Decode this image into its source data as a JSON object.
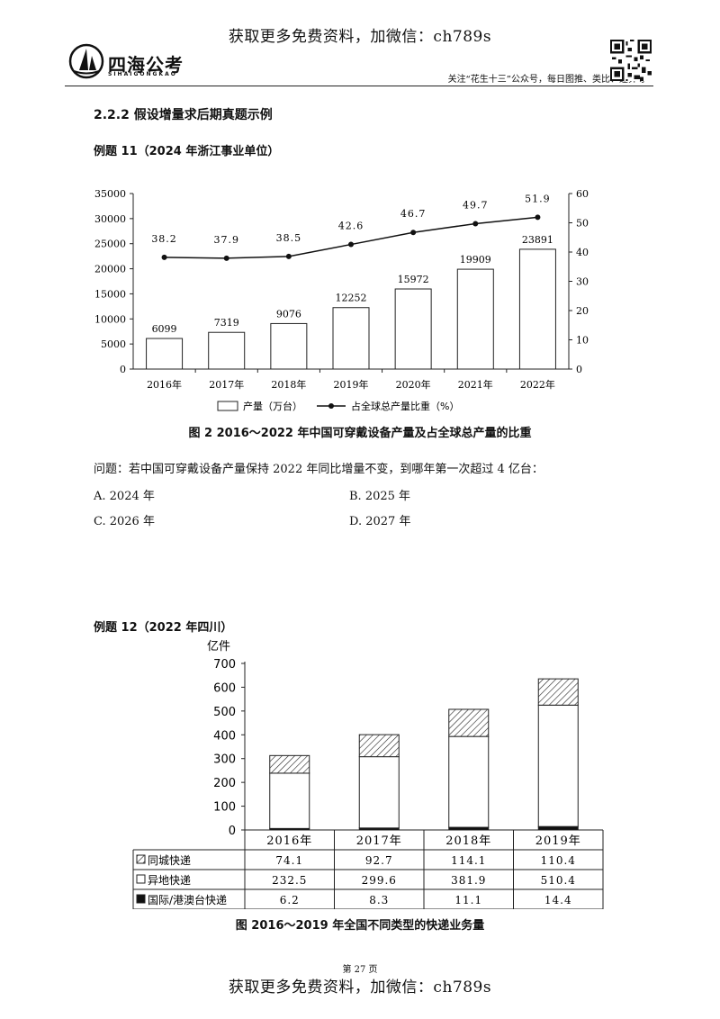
{
  "header": {
    "top_note": "获取更多免费资料，加微信：ch789s",
    "logo_text": "四海公考",
    "logo_sub": "SIHAIGONGKAO",
    "slogan": "关注“花生十三”公众号，每日图推、类比、速算等"
  },
  "section_title": "2.2.2   假设增量求后期真题示例",
  "example11": {
    "title": "例题 11（2024 年浙江事业单位）",
    "caption": "图 2   2016～2022 年中国可穿戴设备产量及占全球总产量的比重",
    "question": "问题：若中国可穿戴设备产量保持 2022 年同比增量不变，到哪年第一次超过 4 亿台：",
    "options": [
      "A. 2024 年",
      "B. 2025 年",
      "C. 2026 年",
      "D. 2027 年"
    ]
  },
  "example12": {
    "title": "例题 12（2022 年四川）",
    "caption": "图   2016～2019 年全国不同类型的快递业务量",
    "unit": "亿件",
    "row_labels": [
      "同城快递",
      "异地快递",
      "国际/港澳台快递"
    ]
  },
  "footer": {
    "page_num": "第 27 页",
    "bottom_note": "获取更多免费资料，加微信：ch789s"
  },
  "chart_data": [
    {
      "type": "bar",
      "categories": [
        "2016年",
        "2017年",
        "2018年",
        "2019年",
        "2020年",
        "2021年",
        "2022年"
      ],
      "series": [
        {
          "name": "产量（万台）",
          "type": "bar",
          "axis": "left",
          "values": [
            6099,
            7319,
            9076,
            12252,
            15972,
            19909,
            23891
          ]
        },
        {
          "name": "占全球总产量比重（%）",
          "type": "line",
          "axis": "right",
          "values": [
            38.2,
            37.9,
            38.5,
            42.6,
            46.7,
            49.7,
            51.9
          ]
        }
      ],
      "yticks_left": [
        0,
        5000,
        10000,
        15000,
        20000,
        25000,
        30000,
        35000
      ],
      "yticks_right": [
        0,
        10,
        20,
        30,
        40,
        50,
        60
      ],
      "ylim_left": [
        0,
        35000
      ],
      "ylim_right": [
        0,
        60
      ],
      "legend": "bottom"
    },
    {
      "type": "bar",
      "stacked": true,
      "categories": [
        "2016年",
        "2017年",
        "2018年",
        "2019年"
      ],
      "series": [
        {
          "name": "国际/港澳台快递",
          "values": [
            6.2,
            8.3,
            11.1,
            14.4
          ],
          "fill": "#111111"
        },
        {
          "name": "异地快递",
          "values": [
            232.5,
            299.6,
            381.9,
            510.4
          ],
          "fill": "#ffffff"
        },
        {
          "name": "同城快递",
          "values": [
            74.1,
            92.7,
            114.1,
            110.4
          ],
          "fill": "hatch"
        }
      ],
      "ylabel": "亿件",
      "yticks": [
        0,
        100,
        200,
        300,
        400,
        500,
        600,
        700
      ],
      "ylim": [
        0,
        700
      ],
      "legend": "table-below"
    }
  ]
}
